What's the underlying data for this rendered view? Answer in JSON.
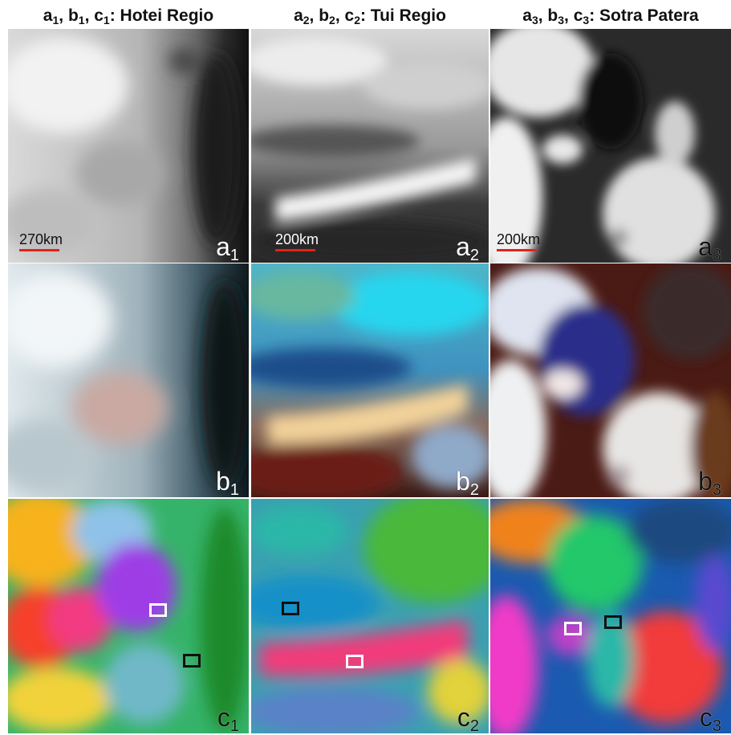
{
  "columns": [
    {
      "sym": [
        "a",
        "b",
        "c"
      ],
      "idx": "1",
      "name": "Hotei Regio"
    },
    {
      "sym": [
        "a",
        "b",
        "c"
      ],
      "idx": "2",
      "name": "Tui Regio"
    },
    {
      "sym": [
        "a",
        "b",
        "c"
      ],
      "idx": "3",
      "name": "Sotra Patera"
    }
  ],
  "scale_bars": [
    "270km",
    "200km",
    "200km"
  ],
  "panel_labels": {
    "a1": [
      "a",
      "1"
    ],
    "a2": [
      "a",
      "2"
    ],
    "a3": [
      "a",
      "3"
    ],
    "b1": [
      "b",
      "1"
    ],
    "b2": [
      "b",
      "2"
    ],
    "b3": [
      "b",
      "3"
    ],
    "c1": [
      "c",
      "1"
    ],
    "c2": [
      "c",
      "2"
    ],
    "c3": [
      "c",
      "3"
    ]
  },
  "colors": {
    "scale_bar": "#e3221b",
    "roi_white": "#ffffff",
    "roi_black": "#111111"
  }
}
